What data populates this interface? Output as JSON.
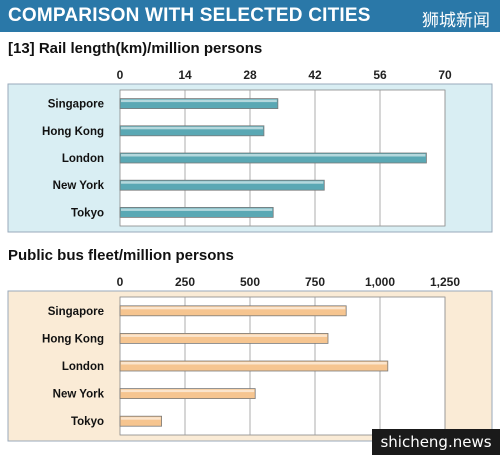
{
  "header": {
    "title": "COMPARISON WITH SELECTED CITIES",
    "watermark": "狮城新闻",
    "color": "#2a78a8"
  },
  "footer": {
    "watermark": "shicheng.news"
  },
  "chart_data": [
    {
      "type": "bar",
      "orientation": "horizontal",
      "title": "[13]  Rail length(km)/million persons",
      "categories": [
        "Singapore",
        "Hong Kong",
        "London",
        "New York",
        "Tokyo"
      ],
      "ticks": [
        "0",
        "14",
        "28",
        "42",
        "56",
        "70"
      ],
      "tick_values": [
        0,
        14,
        28,
        42,
        56,
        70
      ],
      "values": [
        34,
        31,
        66,
        44,
        33
      ],
      "xlim": [
        0,
        70
      ],
      "grid": true,
      "bar_color": "#5aa8b4",
      "bg_color": "#d9eef3"
    },
    {
      "type": "bar",
      "orientation": "horizontal",
      "title": "Public bus fleet/million persons",
      "categories": [
        "Singapore",
        "Hong Kong",
        "London",
        "New York",
        "Tokyo"
      ],
      "ticks": [
        "0",
        "250",
        "500",
        "750",
        "1,000",
        "1,250"
      ],
      "tick_values": [
        0,
        250,
        500,
        750,
        1000,
        1250
      ],
      "values": [
        870,
        800,
        1030,
        520,
        160
      ],
      "xlim": [
        0,
        1250
      ],
      "grid": true,
      "bar_color": "#f6c590",
      "bg_color": "#faebd6"
    }
  ]
}
